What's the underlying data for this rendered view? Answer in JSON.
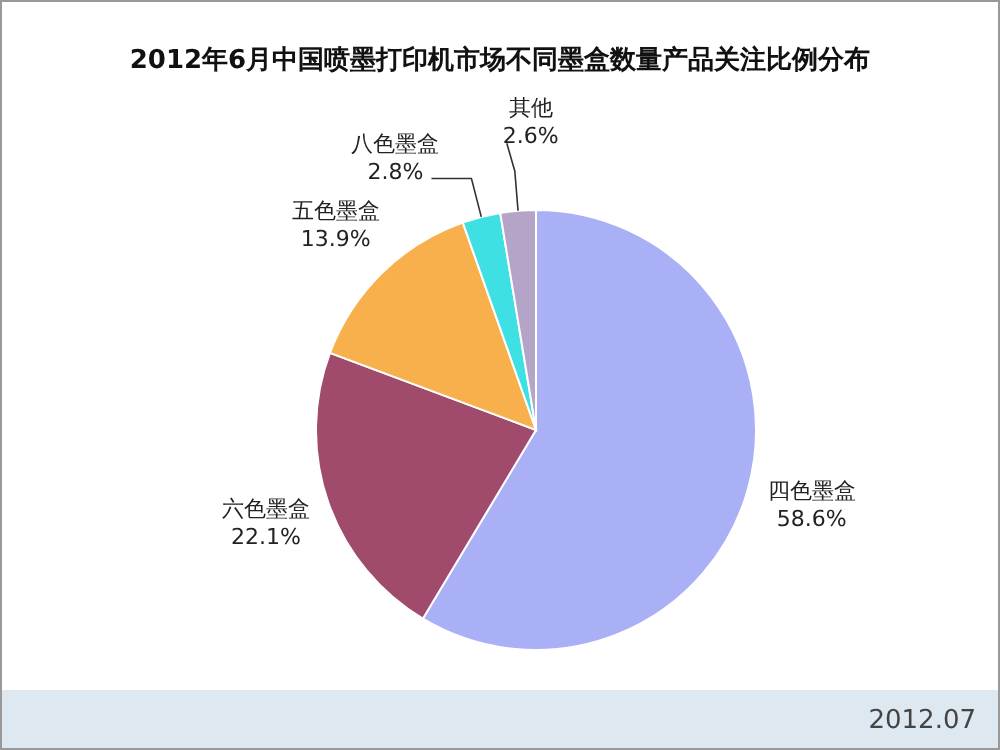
{
  "chart_data": {
    "type": "pie",
    "title": "2012年6月中国喷墨打印机市场不同墨盒数量产品关注比例分布",
    "categories": [
      "四色墨盒",
      "六色墨盒",
      "五色墨盒",
      "八色墨盒",
      "其他"
    ],
    "values": [
      58.6,
      22.1,
      13.9,
      2.8,
      2.6
    ],
    "value_labels": [
      "58.6%",
      "22.1%",
      "13.9%",
      "2.8%",
      "2.6%"
    ],
    "colors": [
      "#aab0f6",
      "#a04a6c",
      "#f8b04c",
      "#3ee0e4",
      "#b4a4c8"
    ],
    "annotations": [
      "2012.07"
    ]
  }
}
